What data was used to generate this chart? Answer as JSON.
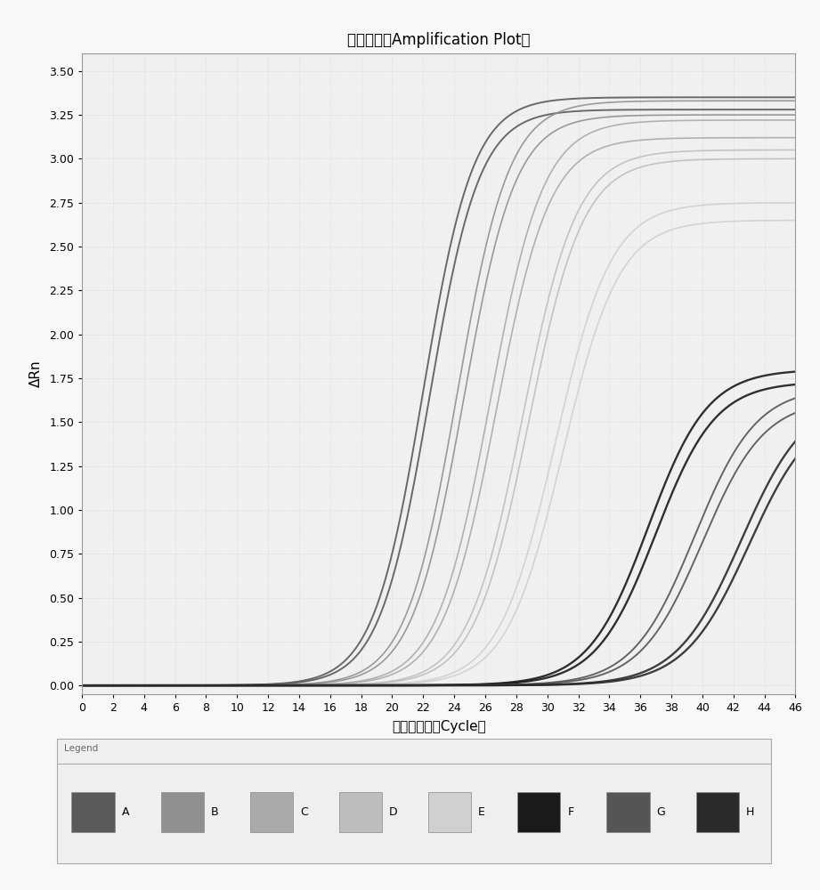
{
  "title": "扩增曲线（Amplification Plot）",
  "xlabel": "扩增循环数（Cycle）",
  "ylabel": "ΔRn",
  "xlim": [
    0,
    46
  ],
  "ylim": [
    -0.05,
    3.6
  ],
  "xticks": [
    0,
    2,
    4,
    6,
    8,
    10,
    12,
    14,
    16,
    18,
    20,
    22,
    24,
    26,
    28,
    30,
    32,
    34,
    36,
    38,
    40,
    42,
    44,
    46
  ],
  "yticks": [
    0.0,
    0.25,
    0.5,
    0.75,
    1.0,
    1.25,
    1.5,
    1.75,
    2.0,
    2.25,
    2.5,
    2.75,
    3.0,
    3.25,
    3.5
  ],
  "background_color": "#f8f8f8",
  "plot_bg_color": "#f0f0f0",
  "grid_color": "#d0d0d0",
  "curves": [
    {
      "group": "A",
      "color": "#5a5a5a",
      "midpoint": 22.0,
      "steepness": 0.62,
      "max_val": 3.35,
      "lw": 1.4
    },
    {
      "group": "A",
      "color": "#5a5a5a",
      "midpoint": 22.4,
      "steepness": 0.62,
      "max_val": 3.28,
      "lw": 1.4
    },
    {
      "group": "B",
      "color": "#909090",
      "midpoint": 24.2,
      "steepness": 0.6,
      "max_val": 3.33,
      "lw": 1.2
    },
    {
      "group": "B",
      "color": "#909090",
      "midpoint": 24.6,
      "steepness": 0.6,
      "max_val": 3.25,
      "lw": 1.2
    },
    {
      "group": "C",
      "color": "#aaaaaa",
      "midpoint": 26.3,
      "steepness": 0.58,
      "max_val": 3.22,
      "lw": 1.2
    },
    {
      "group": "C",
      "color": "#aaaaaa",
      "midpoint": 26.7,
      "steepness": 0.58,
      "max_val": 3.12,
      "lw": 1.2
    },
    {
      "group": "D",
      "color": "#bebebe",
      "midpoint": 28.4,
      "steepness": 0.57,
      "max_val": 3.05,
      "lw": 1.2
    },
    {
      "group": "D",
      "color": "#bebebe",
      "midpoint": 28.8,
      "steepness": 0.57,
      "max_val": 3.0,
      "lw": 1.2
    },
    {
      "group": "E",
      "color": "#d0d0d0",
      "midpoint": 30.5,
      "steepness": 0.55,
      "max_val": 2.75,
      "lw": 1.2
    },
    {
      "group": "E",
      "color": "#d0d0d0",
      "midpoint": 31.0,
      "steepness": 0.55,
      "max_val": 2.65,
      "lw": 1.2
    },
    {
      "group": "F",
      "color": "#1a1a1a",
      "midpoint": 36.5,
      "steepness": 0.52,
      "max_val": 1.8,
      "lw": 1.7
    },
    {
      "group": "F",
      "color": "#1a1a1a",
      "midpoint": 37.0,
      "steepness": 0.52,
      "max_val": 1.73,
      "lw": 1.7
    },
    {
      "group": "G",
      "color": "#555555",
      "midpoint": 39.5,
      "steepness": 0.5,
      "max_val": 1.7,
      "lw": 1.4
    },
    {
      "group": "G",
      "color": "#555555",
      "midpoint": 40.0,
      "steepness": 0.5,
      "max_val": 1.63,
      "lw": 1.4
    },
    {
      "group": "H",
      "color": "#2a2a2a",
      "midpoint": 42.5,
      "steepness": 0.48,
      "max_val": 1.65,
      "lw": 1.7
    },
    {
      "group": "H",
      "color": "#2a2a2a",
      "midpoint": 43.0,
      "steepness": 0.48,
      "max_val": 1.6,
      "lw": 1.7
    }
  ],
  "legend_labels": [
    "A",
    "B",
    "C",
    "D",
    "E",
    "F",
    "G",
    "H"
  ],
  "legend_colors": [
    "#5a5a5a",
    "#909090",
    "#aaaaaa",
    "#bebebe",
    "#d0d0d0",
    "#1a1a1a",
    "#555555",
    "#2a2a2a"
  ],
  "title_fontsize": 12,
  "axis_label_fontsize": 11,
  "tick_fontsize": 9,
  "legend_fontsize": 9
}
